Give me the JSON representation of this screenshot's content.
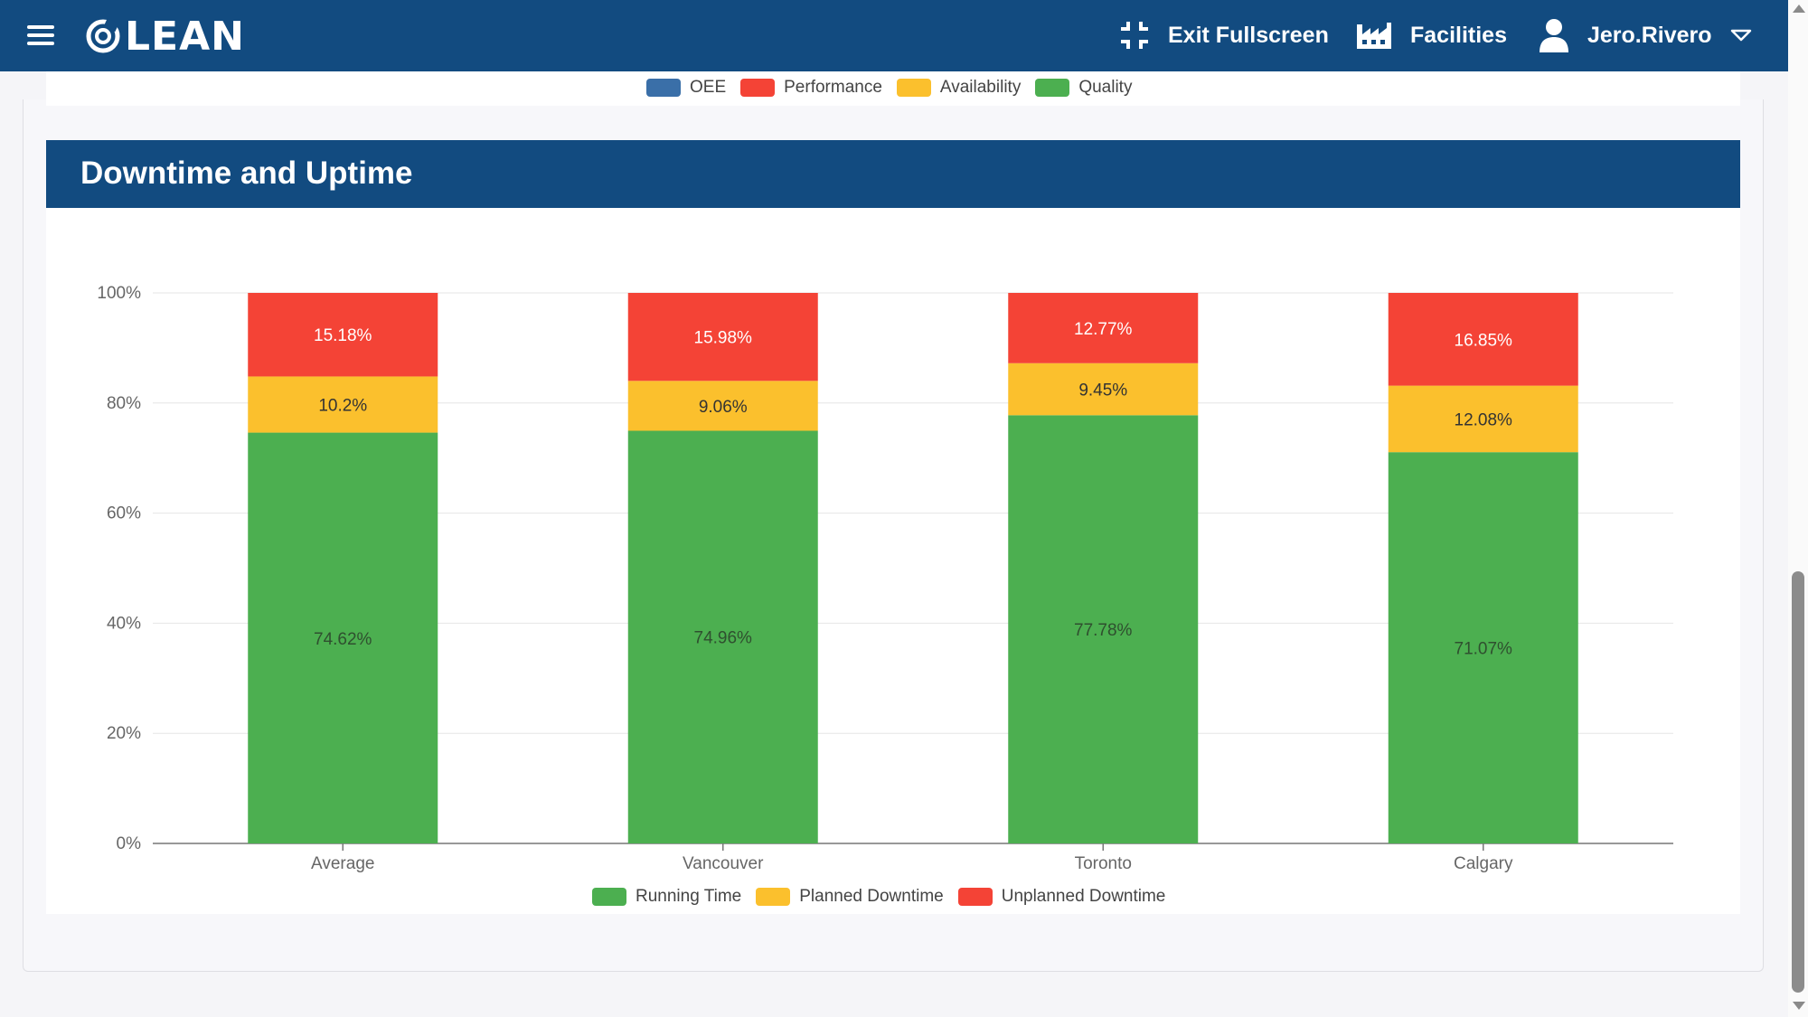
{
  "app": {
    "logo_text": "LEAN"
  },
  "nav": {
    "exit_fullscreen": "Exit Fullscreen",
    "facilities": "Facilities",
    "user": "Jero.Rivero"
  },
  "top_legend": [
    {
      "label": "OEE",
      "color": "#3a6fa8"
    },
    {
      "label": "Performance",
      "color": "#f44336"
    },
    {
      "label": "Availability",
      "color": "#fbc02d"
    },
    {
      "label": "Quality",
      "color": "#4caf50"
    }
  ],
  "section": {
    "title": "Downtime and Uptime"
  },
  "chart_data": {
    "type": "bar",
    "stacked": true,
    "title": "Downtime and Uptime",
    "categories": [
      "Average",
      "Vancouver",
      "Toronto",
      "Calgary"
    ],
    "series": [
      {
        "name": "Running Time",
        "color": "#4caf50",
        "values": [
          74.62,
          74.96,
          77.78,
          71.07
        ],
        "labels": [
          "74.62%",
          "74.96%",
          "77.78%",
          "71.07%"
        ]
      },
      {
        "name": "Planned Downtime",
        "color": "#fbc02d",
        "values": [
          10.2,
          9.06,
          9.45,
          12.08
        ],
        "labels": [
          "10.2%",
          "9.06%",
          "9.45%",
          "12.08%"
        ]
      },
      {
        "name": "Unplanned Downtime",
        "color": "#f44336",
        "values": [
          15.18,
          15.98,
          12.77,
          16.85
        ],
        "labels": [
          "15.18%",
          "15.98%",
          "12.77%",
          "16.85%"
        ]
      }
    ],
    "ylim": [
      0,
      100
    ],
    "yticks": [
      0,
      20,
      40,
      60,
      80,
      100
    ],
    "ytick_labels": [
      "0%",
      "20%",
      "40%",
      "60%",
      "80%",
      "100%"
    ],
    "grid": true,
    "legend_position": "bottom"
  }
}
